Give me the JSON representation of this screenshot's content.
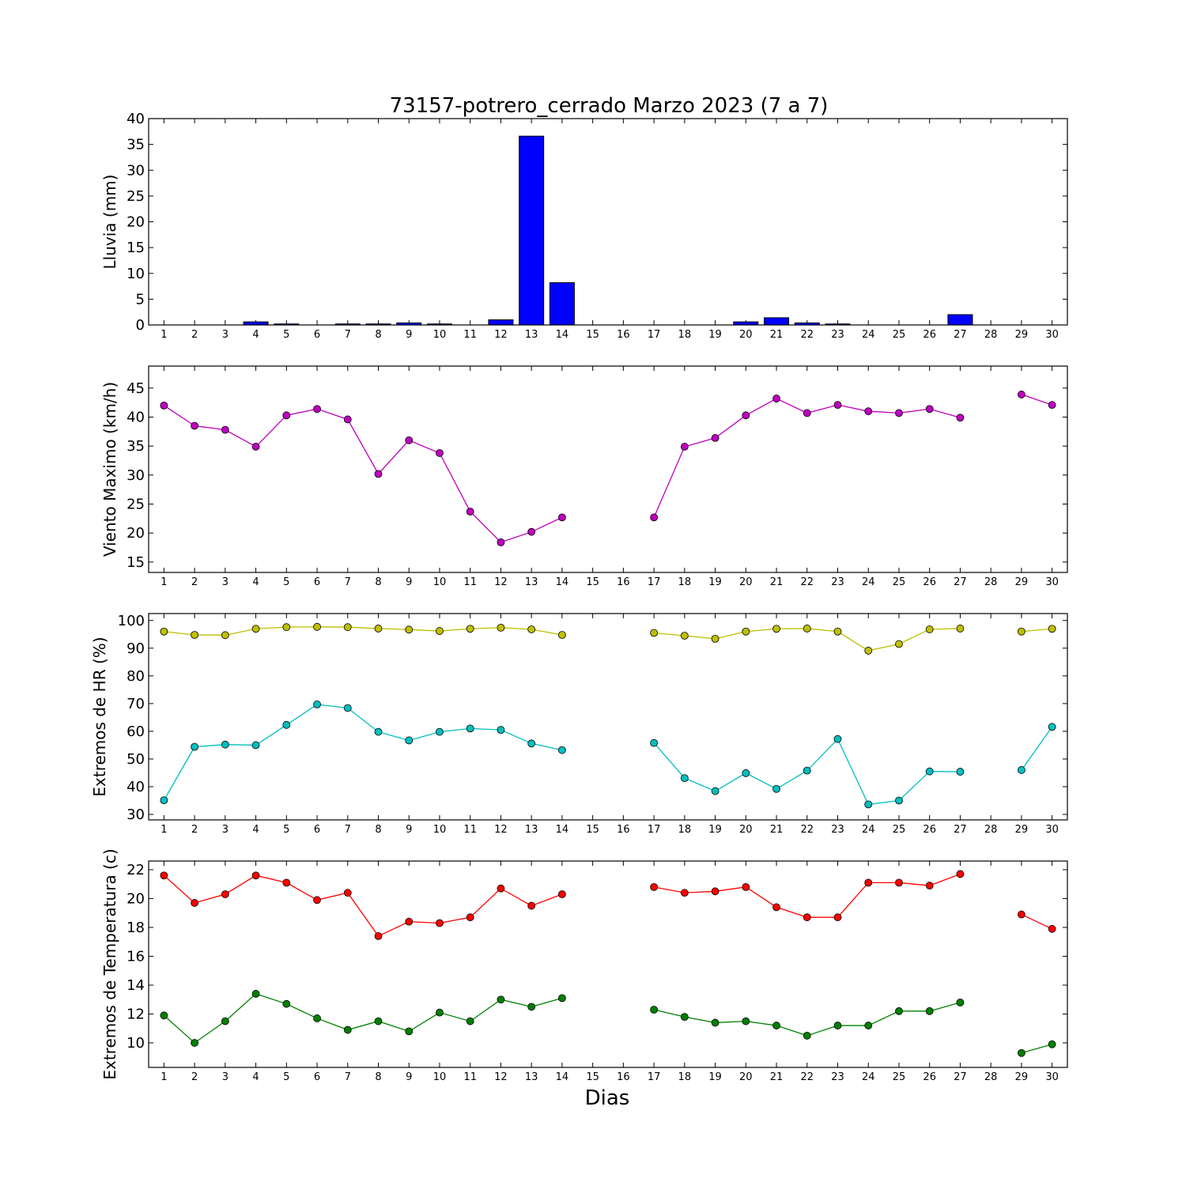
{
  "figure": {
    "title": "73157-potrero_cerrado Marzo 2023  (7 a 7)",
    "xlabel": "Dias"
  },
  "chart_data": [
    {
      "type": "bar",
      "ylabel": "Lluvia (mm)",
      "categories": [
        1,
        2,
        3,
        4,
        5,
        6,
        7,
        8,
        9,
        10,
        11,
        12,
        13,
        14,
        15,
        16,
        17,
        18,
        19,
        20,
        21,
        22,
        23,
        24,
        25,
        26,
        27,
        28,
        29,
        30
      ],
      "values": [
        0,
        0,
        0,
        0.6,
        0.2,
        0,
        0.2,
        0.2,
        0.4,
        0.2,
        0,
        1.0,
        36.6,
        8.2,
        0,
        0,
        0,
        0,
        0,
        0.6,
        1.4,
        0.4,
        0.2,
        0,
        0,
        0,
        2.0,
        0,
        0,
        0
      ],
      "ylim": [
        0,
        40
      ],
      "yticks": [
        0,
        5,
        10,
        15,
        20,
        25,
        30,
        35,
        40
      ],
      "series": [
        {
          "color": "#0000ff"
        }
      ]
    },
    {
      "type": "line",
      "ylabel": "Viento Maximo (km/h)",
      "x": [
        1,
        2,
        3,
        4,
        5,
        6,
        7,
        8,
        9,
        10,
        11,
        12,
        13,
        14,
        15,
        16,
        17,
        18,
        19,
        20,
        21,
        22,
        23,
        24,
        25,
        26,
        27,
        28,
        29,
        30
      ],
      "ylim": [
        13.2,
        48.8
      ],
      "yticks": [
        15,
        20,
        25,
        30,
        35,
        40,
        45
      ],
      "series": [
        {
          "color": "#bf00bf",
          "values": [
            42.0,
            38.5,
            37.8,
            34.9,
            40.3,
            41.4,
            39.6,
            30.2,
            36.0,
            33.8,
            23.7,
            18.4,
            20.2,
            22.7,
            null,
            null,
            22.7,
            34.9,
            36.4,
            40.3,
            43.2,
            40.7,
            42.1,
            41.0,
            40.7,
            41.4,
            39.9,
            null,
            43.9,
            42.1
          ]
        }
      ]
    },
    {
      "type": "line",
      "ylabel": "Extremos de HR (%)",
      "x": [
        1,
        2,
        3,
        4,
        5,
        6,
        7,
        8,
        9,
        10,
        11,
        12,
        13,
        14,
        15,
        16,
        17,
        18,
        19,
        20,
        21,
        22,
        23,
        24,
        25,
        26,
        27,
        28,
        29,
        30
      ],
      "ylim": [
        28,
        102.5
      ],
      "yticks": [
        30,
        40,
        50,
        60,
        70,
        80,
        90,
        100
      ],
      "series": [
        {
          "color": "#bfbf00",
          "values": [
            96,
            94.8,
            94.7,
            97,
            97.6,
            97.7,
            97.6,
            97.1,
            96.7,
            96.2,
            97,
            97.4,
            96.8,
            94.8,
            null,
            null,
            95.5,
            94.5,
            93.4,
            96,
            97,
            97.1,
            96,
            89.1,
            91.5,
            96.8,
            97.1,
            null,
            96,
            97
          ]
        },
        {
          "color": "#00bfbf",
          "values": [
            35.1,
            54.4,
            55.2,
            55,
            62.3,
            69.7,
            68.4,
            59.8,
            56.7,
            59.8,
            61,
            60.5,
            55.6,
            53.2,
            null,
            null,
            55.8,
            43.1,
            38.4,
            44.9,
            39.2,
            45.8,
            57.2,
            33.6,
            35,
            45.5,
            45.4,
            null,
            46,
            61.6
          ]
        }
      ]
    },
    {
      "type": "line",
      "ylabel": "Extremos de Temperatura (c)",
      "x": [
        1,
        2,
        3,
        4,
        5,
        6,
        7,
        8,
        9,
        10,
        11,
        12,
        13,
        14,
        15,
        16,
        17,
        18,
        19,
        20,
        21,
        22,
        23,
        24,
        25,
        26,
        27,
        28,
        29,
        30
      ],
      "ylim": [
        8.3,
        22.6
      ],
      "yticks": [
        10,
        12,
        14,
        16,
        18,
        20,
        22
      ],
      "series": [
        {
          "color": "#ff0000",
          "values": [
            21.6,
            19.7,
            20.3,
            21.6,
            21.1,
            19.9,
            20.4,
            17.4,
            18.4,
            18.3,
            18.7,
            20.7,
            19.5,
            20.3,
            null,
            null,
            20.8,
            20.4,
            20.5,
            20.8,
            19.4,
            18.7,
            18.7,
            21.1,
            21.1,
            20.9,
            21.7,
            null,
            18.9,
            17.9
          ]
        },
        {
          "color": "#008000",
          "values": [
            11.9,
            10.0,
            11.5,
            13.4,
            12.7,
            11.7,
            10.9,
            11.5,
            10.8,
            12.1,
            11.5,
            13.0,
            12.5,
            13.1,
            null,
            null,
            12.3,
            11.8,
            11.4,
            11.5,
            11.2,
            10.5,
            11.2,
            11.2,
            12.2,
            12.2,
            12.8,
            null,
            9.3,
            9.9
          ]
        }
      ]
    }
  ]
}
